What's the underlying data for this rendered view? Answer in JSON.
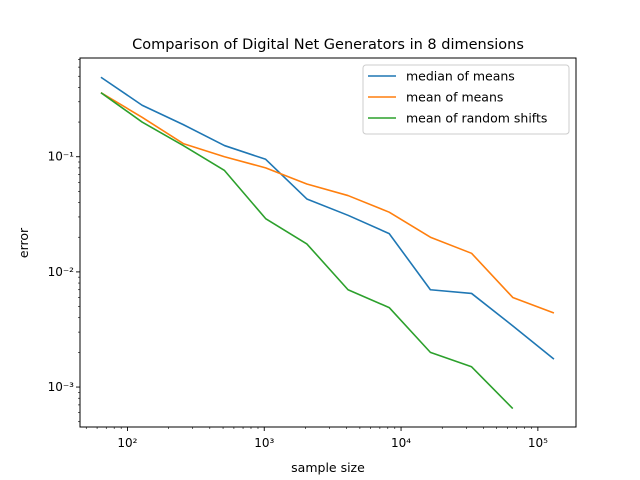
{
  "chart_data": {
    "type": "line",
    "title": "Comparison of Digital Net Generators in 8 dimensions",
    "xlabel": "sample size",
    "ylabel": "error",
    "xscale": "log",
    "yscale": "log",
    "xlim": [
      45,
      190000
    ],
    "ylim": [
      0.00045,
      0.72
    ],
    "grid": false,
    "legend_position": "top-right",
    "x": [
      64,
      128,
      256,
      512,
      1024,
      2048,
      4096,
      8192,
      16384,
      32768,
      65536,
      131072
    ],
    "series": [
      {
        "name": "median of means",
        "color": "#1f77b4",
        "values": [
          0.49,
          0.28,
          0.19,
          0.125,
          0.095,
          0.043,
          0.031,
          0.0215,
          0.007,
          0.0065,
          0.0034,
          0.00175
        ]
      },
      {
        "name": "mean of means",
        "color": "#ff7f0e",
        "values": [
          0.36,
          0.22,
          0.13,
          0.1,
          0.08,
          0.058,
          0.046,
          0.033,
          0.02,
          0.0145,
          0.006,
          0.0044
        ]
      },
      {
        "name": "mean of random shifts",
        "color": "#2ca02c",
        "values": [
          0.36,
          0.2,
          0.125,
          0.076,
          0.029,
          0.0175,
          0.007,
          0.0049,
          0.002,
          0.0015,
          0.00065,
          null
        ]
      }
    ],
    "x_ticks": [
      {
        "value": 100,
        "label": "10²"
      },
      {
        "value": 1000,
        "label": "10³"
      },
      {
        "value": 10000,
        "label": "10⁴"
      },
      {
        "value": 100000,
        "label": "10⁵"
      }
    ],
    "y_ticks": [
      {
        "value": 0.001,
        "label": "10⁻³"
      },
      {
        "value": 0.01,
        "label": "10⁻²"
      },
      {
        "value": 0.1,
        "label": "10⁻¹"
      }
    ]
  }
}
